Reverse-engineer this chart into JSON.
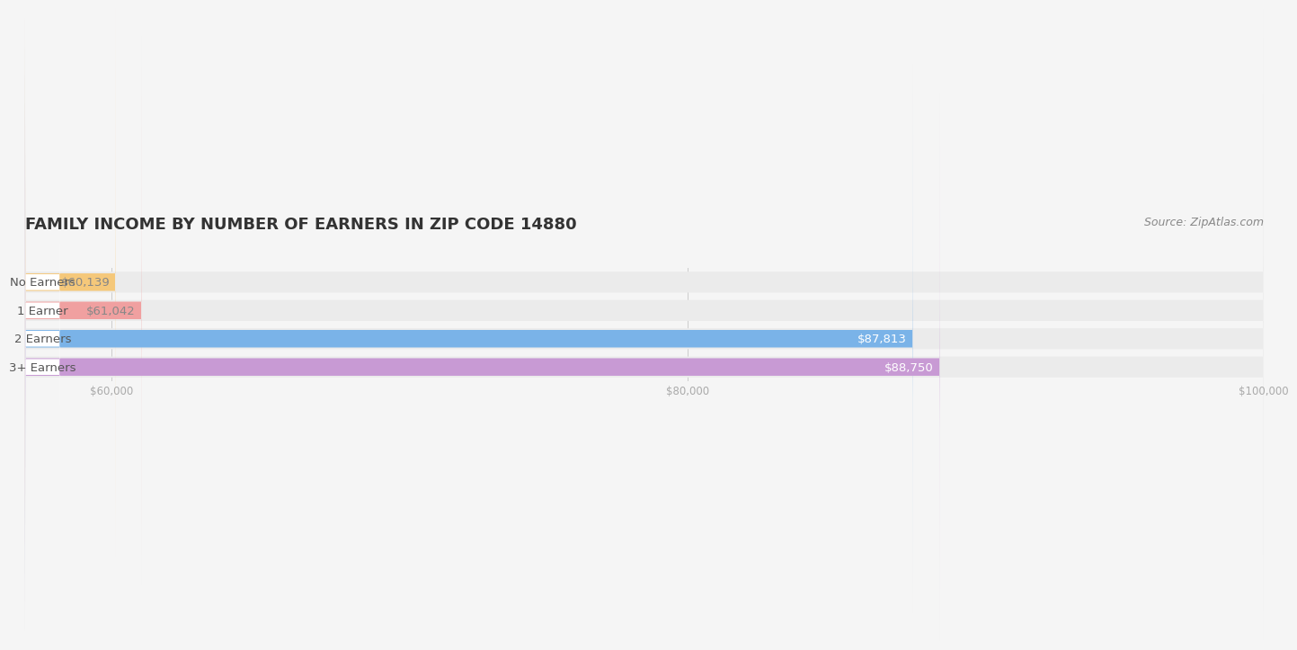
{
  "title": "FAMILY INCOME BY NUMBER OF EARNERS IN ZIP CODE 14880",
  "source": "Source: ZipAtlas.com",
  "categories": [
    "No Earners",
    "1 Earner",
    "2 Earners",
    "3+ Earners"
  ],
  "values": [
    60139,
    61042,
    87813,
    88750
  ],
  "bar_colors": [
    "#f5c87a",
    "#f0a0a0",
    "#7ab3e8",
    "#c89ad4"
  ],
  "label_colors": [
    "#888888",
    "#888888",
    "#ffffff",
    "#ffffff"
  ],
  "value_labels": [
    "$60,139",
    "$61,042",
    "$87,813",
    "$88,750"
  ],
  "xmin": 57000,
  "xmax": 100000,
  "xticks": [
    60000,
    80000,
    100000
  ],
  "xtick_labels": [
    "$60,000",
    "$80,000",
    "$100,000"
  ],
  "background_color": "#f5f5f5",
  "bar_bg_color": "#ebebeb",
  "title_fontsize": 13,
  "label_fontsize": 9.5,
  "value_fontsize": 9.5,
  "source_fontsize": 9,
  "title_color": "#333333",
  "source_color": "#888888",
  "tick_color": "#aaaaaa",
  "category_label_color": "#555555"
}
